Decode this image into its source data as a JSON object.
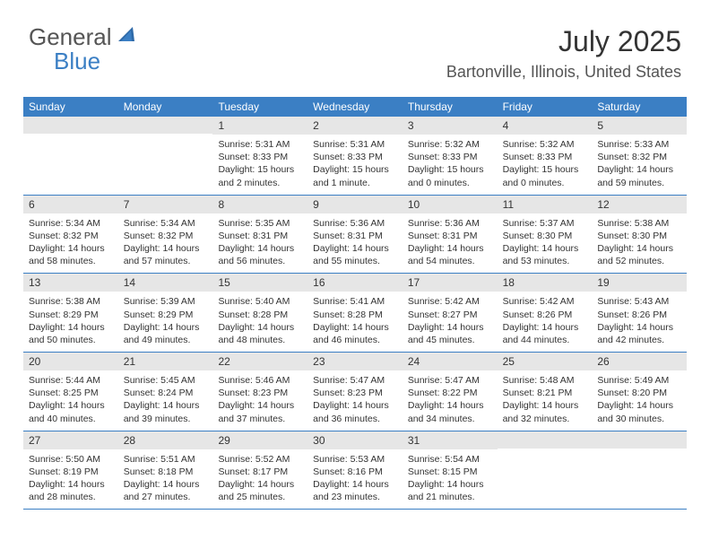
{
  "logo": {
    "line1": "General",
    "line2": "Blue"
  },
  "header": {
    "title": "July 2025",
    "location": "Bartonville, Illinois, United States"
  },
  "colors": {
    "header_bg": "#3b7fc4",
    "daynum_bg": "#e6e6e6",
    "border": "#3b7fc4",
    "text": "#333333"
  },
  "weekdays": [
    "Sunday",
    "Monday",
    "Tuesday",
    "Wednesday",
    "Thursday",
    "Friday",
    "Saturday"
  ],
  "weeks": [
    [
      null,
      null,
      {
        "n": "1",
        "sr": "5:31 AM",
        "ss": "8:33 PM",
        "dl": "15 hours and 2 minutes."
      },
      {
        "n": "2",
        "sr": "5:31 AM",
        "ss": "8:33 PM",
        "dl": "15 hours and 1 minute."
      },
      {
        "n": "3",
        "sr": "5:32 AM",
        "ss": "8:33 PM",
        "dl": "15 hours and 0 minutes."
      },
      {
        "n": "4",
        "sr": "5:32 AM",
        "ss": "8:33 PM",
        "dl": "15 hours and 0 minutes."
      },
      {
        "n": "5",
        "sr": "5:33 AM",
        "ss": "8:32 PM",
        "dl": "14 hours and 59 minutes."
      }
    ],
    [
      {
        "n": "6",
        "sr": "5:34 AM",
        "ss": "8:32 PM",
        "dl": "14 hours and 58 minutes."
      },
      {
        "n": "7",
        "sr": "5:34 AM",
        "ss": "8:32 PM",
        "dl": "14 hours and 57 minutes."
      },
      {
        "n": "8",
        "sr": "5:35 AM",
        "ss": "8:31 PM",
        "dl": "14 hours and 56 minutes."
      },
      {
        "n": "9",
        "sr": "5:36 AM",
        "ss": "8:31 PM",
        "dl": "14 hours and 55 minutes."
      },
      {
        "n": "10",
        "sr": "5:36 AM",
        "ss": "8:31 PM",
        "dl": "14 hours and 54 minutes."
      },
      {
        "n": "11",
        "sr": "5:37 AM",
        "ss": "8:30 PM",
        "dl": "14 hours and 53 minutes."
      },
      {
        "n": "12",
        "sr": "5:38 AM",
        "ss": "8:30 PM",
        "dl": "14 hours and 52 minutes."
      }
    ],
    [
      {
        "n": "13",
        "sr": "5:38 AM",
        "ss": "8:29 PM",
        "dl": "14 hours and 50 minutes."
      },
      {
        "n": "14",
        "sr": "5:39 AM",
        "ss": "8:29 PM",
        "dl": "14 hours and 49 minutes."
      },
      {
        "n": "15",
        "sr": "5:40 AM",
        "ss": "8:28 PM",
        "dl": "14 hours and 48 minutes."
      },
      {
        "n": "16",
        "sr": "5:41 AM",
        "ss": "8:28 PM",
        "dl": "14 hours and 46 minutes."
      },
      {
        "n": "17",
        "sr": "5:42 AM",
        "ss": "8:27 PM",
        "dl": "14 hours and 45 minutes."
      },
      {
        "n": "18",
        "sr": "5:42 AM",
        "ss": "8:26 PM",
        "dl": "14 hours and 44 minutes."
      },
      {
        "n": "19",
        "sr": "5:43 AM",
        "ss": "8:26 PM",
        "dl": "14 hours and 42 minutes."
      }
    ],
    [
      {
        "n": "20",
        "sr": "5:44 AM",
        "ss": "8:25 PM",
        "dl": "14 hours and 40 minutes."
      },
      {
        "n": "21",
        "sr": "5:45 AM",
        "ss": "8:24 PM",
        "dl": "14 hours and 39 minutes."
      },
      {
        "n": "22",
        "sr": "5:46 AM",
        "ss": "8:23 PM",
        "dl": "14 hours and 37 minutes."
      },
      {
        "n": "23",
        "sr": "5:47 AM",
        "ss": "8:23 PM",
        "dl": "14 hours and 36 minutes."
      },
      {
        "n": "24",
        "sr": "5:47 AM",
        "ss": "8:22 PM",
        "dl": "14 hours and 34 minutes."
      },
      {
        "n": "25",
        "sr": "5:48 AM",
        "ss": "8:21 PM",
        "dl": "14 hours and 32 minutes."
      },
      {
        "n": "26",
        "sr": "5:49 AM",
        "ss": "8:20 PM",
        "dl": "14 hours and 30 minutes."
      }
    ],
    [
      {
        "n": "27",
        "sr": "5:50 AM",
        "ss": "8:19 PM",
        "dl": "14 hours and 28 minutes."
      },
      {
        "n": "28",
        "sr": "5:51 AM",
        "ss": "8:18 PM",
        "dl": "14 hours and 27 minutes."
      },
      {
        "n": "29",
        "sr": "5:52 AM",
        "ss": "8:17 PM",
        "dl": "14 hours and 25 minutes."
      },
      {
        "n": "30",
        "sr": "5:53 AM",
        "ss": "8:16 PM",
        "dl": "14 hours and 23 minutes."
      },
      {
        "n": "31",
        "sr": "5:54 AM",
        "ss": "8:15 PM",
        "dl": "14 hours and 21 minutes."
      },
      null,
      null
    ]
  ],
  "labels": {
    "sunrise": "Sunrise:",
    "sunset": "Sunset:",
    "daylight": "Daylight:"
  }
}
